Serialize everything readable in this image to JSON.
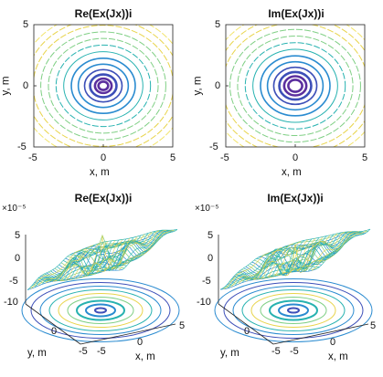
{
  "chart_data": [
    {
      "type": "contour",
      "title": "Re(Ex(Jx))i",
      "xlabel": "x, m",
      "ylabel": "y, m",
      "xlim": [
        -5,
        5
      ],
      "ylim": [
        -5,
        5
      ],
      "xticks": [
        "-5",
        "0",
        "5"
      ],
      "yticks": [
        "5",
        "0",
        "-5"
      ],
      "contour_rings": [
        0.35,
        0.6,
        0.95,
        1.35,
        1.8,
        2.3,
        2.85,
        3.4,
        3.95,
        4.5,
        5.05,
        5.6,
        6.1
      ],
      "colors": [
        "#5b2f9e",
        "#3d4fb8",
        "#2a8bd0",
        "#27b2b0",
        "#7fcf84",
        "#e8d44a",
        "#f2e46a"
      ]
    },
    {
      "type": "contour",
      "title": "Im(Ex(Jx))i",
      "xlabel": "x, m",
      "ylabel": "y, m",
      "xlim": [
        -5,
        5
      ],
      "ylim": [
        -5,
        5
      ],
      "xticks": [
        "-5",
        "0",
        "5"
      ],
      "yticks": [
        "5",
        "0",
        "-5"
      ],
      "contour_rings": [
        0.5,
        0.8,
        1.15,
        1.55,
        2.0,
        2.5,
        3.05,
        3.6,
        4.15,
        4.7,
        5.25,
        5.8,
        6.3
      ],
      "colors": [
        "#5b2f9e",
        "#3d4fb8",
        "#2a8bd0",
        "#27b2b0",
        "#7fcf84",
        "#e8d44a",
        "#f2e46a"
      ]
    },
    {
      "type": "surface",
      "title": "Re(Ex(Jx))i",
      "xlabel": "x, m",
      "ylabel": "y, m",
      "zexponent": "×10⁻⁵",
      "zticks": [
        "5",
        "0",
        "-5",
        "-10"
      ],
      "xticks": [
        "-5",
        "0",
        "5"
      ],
      "yticks": [
        "0",
        "-5"
      ]
    },
    {
      "type": "surface",
      "title": "Im(Ex(Jx))i",
      "xlabel": "x, m",
      "ylabel": "y, m",
      "zexponent": "×10⁻⁵",
      "zticks": [
        "5",
        "0",
        "-5",
        "-10"
      ],
      "xticks": [
        "-5",
        "0",
        "5"
      ],
      "yticks": [
        "0",
        "-5"
      ]
    }
  ]
}
